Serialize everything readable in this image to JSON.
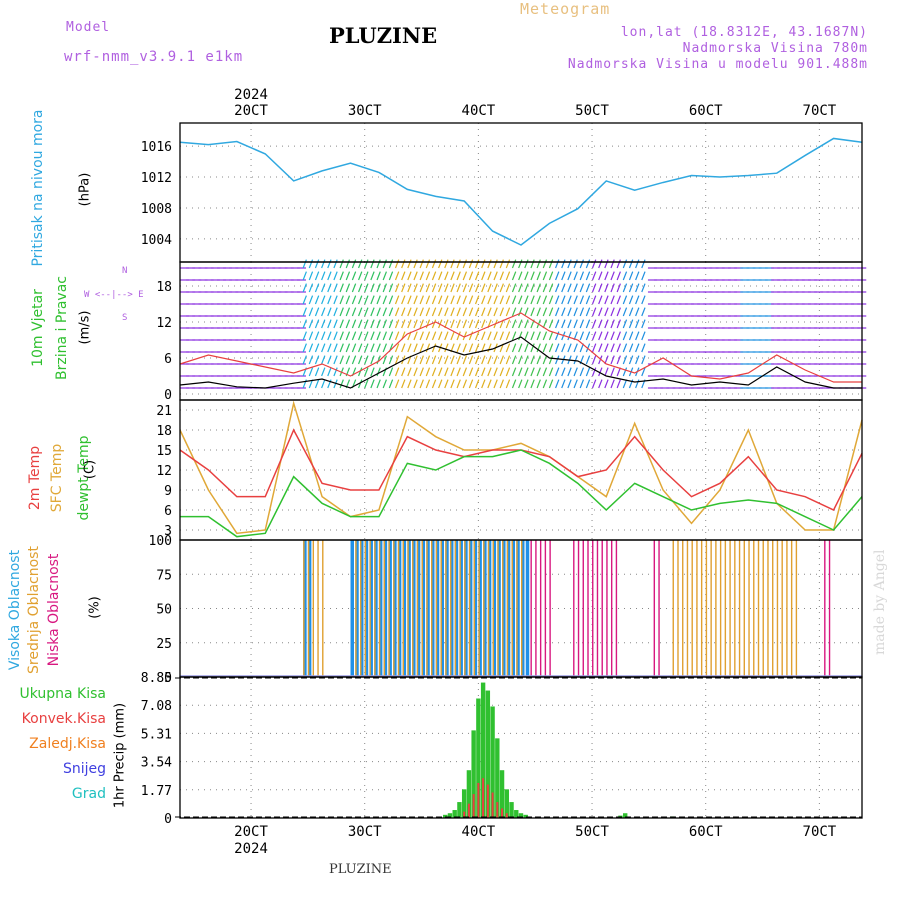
{
  "header": {
    "model_label": "Model",
    "model_name": "wrf-nmm_v3.9.1 e1km",
    "station": "PLUZINE",
    "meteogram": "Meteogram",
    "coords": "lon,lat (18.8312E, 43.1687N)",
    "elevation": "Nadmorska Visina 780m",
    "model_elevation": "Nadmorska Visina u modelu 901.488m"
  },
  "footer": {
    "station": "PLUZINE",
    "credit": "made by Angel"
  },
  "colors": {
    "pressure": "#30a8e0",
    "temp2m": "#e84040",
    "sfc": "#e0a838",
    "dewpt": "#30c030",
    "high": "#2090e8",
    "mid": "#e0a030",
    "low": "#d81880",
    "total": "#30c030",
    "conv": "#e84040",
    "frz": "#f08020",
    "snow": "#4040e0",
    "hail": "#20c0c0"
  },
  "chart_data": [
    {
      "type": "line",
      "panel": "pressure",
      "title": "",
      "ylabel_parts": [
        "Pritisak na nivou mora",
        "(hPa)"
      ],
      "yticks": [
        1004,
        1008,
        1012,
        1016
      ],
      "ylim": [
        1001,
        1019
      ],
      "x_top_labels": [
        "20CT",
        "30CT",
        "40CT",
        "50CT",
        "60CT",
        "70CT"
      ],
      "x_top_year": "2024",
      "x_hours": [
        0,
        6,
        12,
        18,
        24,
        30,
        36,
        42,
        48,
        54,
        60,
        66,
        72,
        78,
        84,
        90,
        96,
        102,
        108,
        114,
        120,
        126,
        132,
        138,
        144
      ],
      "series": [
        {
          "values": [
            1016.5,
            1016.2,
            1016.6,
            1015.0,
            1011.5,
            1012.8,
            1013.8,
            1012.6,
            1010.4,
            1009.5,
            1008.9,
            1005.0,
            1003.2,
            1006.0,
            1007.9,
            1011.5,
            1010.3,
            1011.3,
            1012.2,
            1012.0,
            1012.2,
            1012.5,
            1014.8,
            1017.0,
            1016.5
          ]
        }
      ]
    },
    {
      "type": "line",
      "panel": "wind",
      "ylabel_parts": [
        "10m Vjetar",
        "Brzina i Pravac",
        "(m/s)"
      ],
      "direction_key": [
        "N",
        "W <--|--> E",
        "S"
      ],
      "yticks": [
        0,
        6,
        12,
        18
      ],
      "ylim": [
        -1,
        22
      ],
      "x_hours": [
        0,
        6,
        12,
        18,
        24,
        30,
        36,
        42,
        48,
        54,
        60,
        66,
        72,
        78,
        84,
        90,
        96,
        102,
        108,
        114,
        120,
        126,
        132,
        138,
        144
      ],
      "series": [
        {
          "values": [
            1.5,
            2.0,
            1.2,
            1.0,
            1.8,
            2.5,
            1.0,
            3.5,
            6.0,
            8.0,
            6.5,
            7.5,
            9.5,
            6.0,
            5.5,
            3.0,
            2.0,
            2.5,
            1.5,
            2.0,
            1.5,
            4.5,
            2.0,
            1.0,
            1.0
          ]
        },
        {
          "values": [
            5.0,
            6.5,
            5.5,
            4.5,
            3.5,
            5.0,
            3.0,
            5.5,
            10.0,
            12.0,
            9.5,
            11.5,
            13.5,
            10.5,
            9.0,
            5.0,
            3.5,
            6.0,
            3.0,
            2.5,
            3.5,
            6.5,
            4.0,
            2.0,
            2.0
          ]
        }
      ]
    },
    {
      "type": "line",
      "panel": "temperature",
      "ylabel_parts": [
        "2m Temp",
        "SFC Temp",
        "dewpt Temp",
        "(C)"
      ],
      "yticks": [
        3,
        6,
        9,
        12,
        15,
        18,
        21
      ],
      "ylim": [
        1.5,
        22.5
      ],
      "x_hours": [
        0,
        6,
        12,
        18,
        24,
        30,
        36,
        42,
        48,
        54,
        60,
        66,
        72,
        78,
        84,
        90,
        96,
        102,
        108,
        114,
        120,
        126,
        132,
        138,
        144
      ],
      "series": [
        {
          "values": [
            15,
            12,
            8,
            8,
            18,
            10,
            9,
            9,
            17,
            15,
            14,
            15,
            15,
            14,
            11,
            12,
            17,
            12,
            8,
            10,
            14,
            9,
            8,
            6,
            14.5
          ]
        },
        {
          "values": [
            18,
            9,
            2.5,
            3,
            22,
            8,
            5,
            6,
            20,
            17,
            15,
            15,
            16,
            14,
            11,
            8,
            19,
            9,
            4,
            9,
            18,
            7,
            3,
            3,
            19.5
          ]
        },
        {
          "values": [
            5,
            5,
            2,
            2.5,
            11,
            7,
            5,
            5,
            13,
            12,
            14,
            14,
            15,
            13,
            10,
            6,
            10,
            8,
            6,
            7,
            7.5,
            7,
            5,
            3,
            8
          ]
        }
      ]
    },
    {
      "type": "bar",
      "panel": "cloud",
      "ylabel_parts": [
        "Visoka Oblacnost",
        "Srednja Oblacnost",
        "Niska Oblacnost",
        "(%)"
      ],
      "yticks": [
        0,
        25,
        50,
        75,
        100
      ],
      "ylim": [
        0,
        100
      ],
      "series": [
        {
          "key": "high",
          "ranges": [
            [
              26,
              27
            ],
            [
              36,
              73
            ]
          ]
        },
        {
          "key": "mid",
          "ranges": [
            [
              26,
              30
            ],
            [
              37,
              72
            ],
            [
              104,
              130
            ]
          ]
        },
        {
          "key": "low",
          "ranges": [
            [
              74,
              78
            ],
            [
              83,
              92
            ],
            [
              100,
              101
            ],
            [
              136,
              137
            ]
          ]
        }
      ]
    },
    {
      "type": "bar",
      "panel": "precip",
      "ylabel_parts": [
        "1hr Precip (mm)"
      ],
      "yticks": [
        0,
        1.77,
        3.54,
        5.31,
        7.08,
        8.85
      ],
      "ylim": [
        0,
        8.85
      ],
      "x_bottom_labels": [
        "20CT",
        "30CT",
        "40CT",
        "50CT",
        "60CT",
        "70CT"
      ],
      "x_bottom_year": "2024",
      "legend": [
        "Ukupna Kisa",
        "Konvek.Kisa",
        "Zaledj.Kisa",
        "Snijeg",
        "Grad"
      ],
      "total": [
        [
          56,
          0.2
        ],
        [
          57,
          0.3
        ],
        [
          58,
          0.5
        ],
        [
          59,
          1.0
        ],
        [
          60,
          1.8
        ],
        [
          61,
          3.0
        ],
        [
          62,
          5.5
        ],
        [
          63,
          7.5
        ],
        [
          64,
          8.5
        ],
        [
          65,
          8.0
        ],
        [
          66,
          7.0
        ],
        [
          67,
          5.0
        ],
        [
          68,
          3.0
        ],
        [
          69,
          1.8
        ],
        [
          70,
          1.0
        ],
        [
          71,
          0.5
        ],
        [
          72,
          0.3
        ],
        [
          73,
          0.2
        ],
        [
          93,
          0.15
        ],
        [
          94,
          0.3
        ],
        [
          104,
          0.1
        ]
      ],
      "conv": [
        [
          60,
          0.4
        ],
        [
          61,
          0.9
        ],
        [
          62,
          1.5
        ],
        [
          63,
          2.2
        ],
        [
          64,
          2.5
        ],
        [
          65,
          2.1
        ],
        [
          66,
          1.6
        ],
        [
          67,
          1.0
        ],
        [
          68,
          0.6
        ],
        [
          69,
          0.3
        ]
      ]
    }
  ]
}
